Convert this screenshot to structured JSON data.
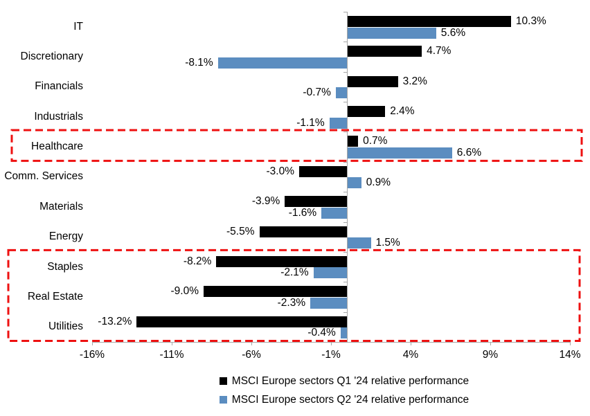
{
  "chart_data": {
    "type": "bar",
    "orientation": "horizontal",
    "categories": [
      "IT",
      "Discretionary",
      "Financials",
      "Industrials",
      "Healthcare",
      "Comm. Services",
      "Materials",
      "Energy",
      "Staples",
      "Real Estate",
      "Utilities"
    ],
    "series": [
      {
        "name": "MSCI Europe sectors Q1 '24 relative performance",
        "color": "#000000",
        "values": [
          10.3,
          4.7,
          3.2,
          2.4,
          0.7,
          -3.0,
          -3.9,
          -5.5,
          -8.2,
          -9.0,
          -13.2
        ]
      },
      {
        "name": "MSCI Europe sectors Q2 '24 relative performance",
        "color": "#5B8DC0",
        "values": [
          5.6,
          -8.1,
          -0.7,
          -1.1,
          6.6,
          0.9,
          -1.6,
          1.5,
          -2.1,
          -2.3,
          -0.4
        ]
      }
    ],
    "value_labels": {
      "format": "one-decimal-percent",
      "q1": [
        "10.3%",
        "4.7%",
        "3.2%",
        "2.4%",
        "0.7%",
        "-3.0%",
        "-3.9%",
        "-5.5%",
        "-8.2%",
        "-9.0%",
        "-13.2%"
      ],
      "q2": [
        "5.6%",
        "-8.1%",
        "-0.7%",
        "-1.1%",
        "6.6%",
        "0.9%",
        "-1.6%",
        "1.5%",
        "-2.1%",
        "-2.3%",
        "-0.4%"
      ]
    },
    "x_axis": {
      "min": -16,
      "max": 14,
      "tick_values": [
        -16,
        -11,
        -6,
        -1,
        4,
        9,
        14
      ],
      "ticks": [
        "-16%",
        "-11%",
        "-6%",
        "-1%",
        "4%",
        "9%",
        "14%"
      ],
      "grid": false
    },
    "axis_color": "#A6A6A6",
    "highlight_color": "#EE1111",
    "highlights": [
      {
        "name": "healthcare-highlight-box",
        "categories": [
          "Healthcare"
        ]
      },
      {
        "name": "defensives-highlight-box",
        "categories": [
          "Staples",
          "Real Estate",
          "Utilities"
        ]
      }
    ],
    "legend_position": "bottom",
    "title": "",
    "xlabel": "",
    "ylabel": ""
  }
}
